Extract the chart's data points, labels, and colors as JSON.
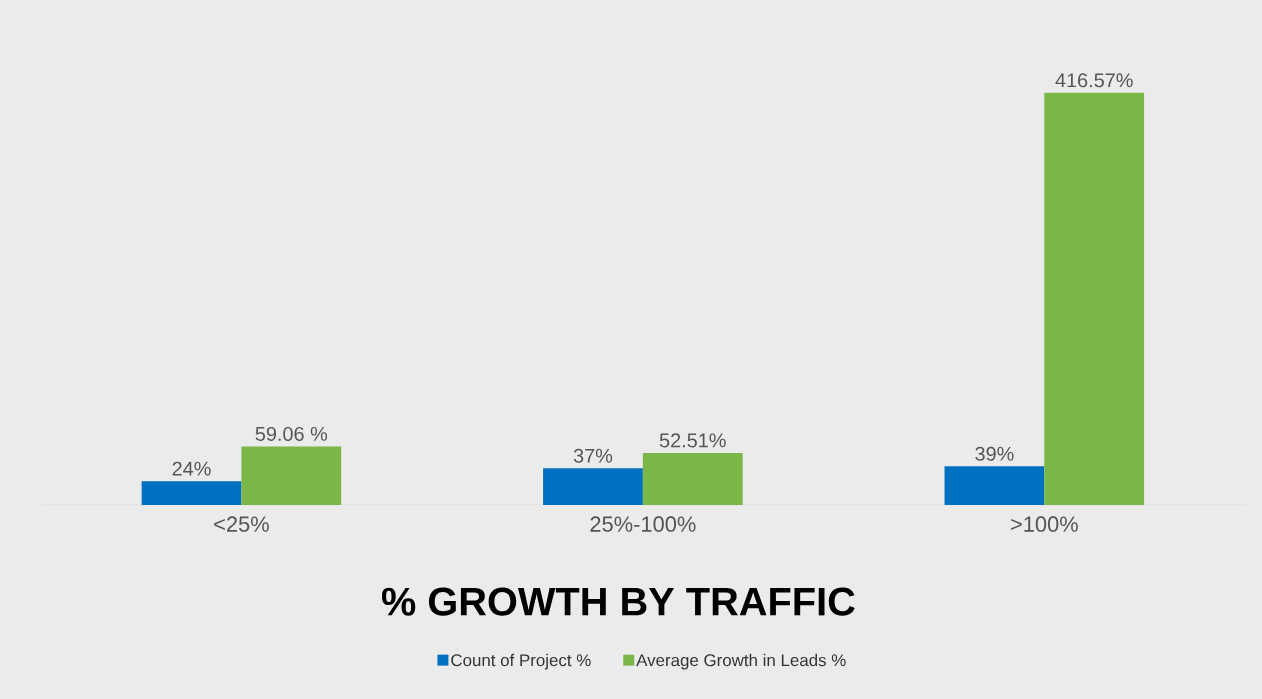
{
  "chart_data": {
    "type": "bar",
    "title": "% GROWTH BY TRAFFIC",
    "categories": [
      "<25%",
      "25%-100%",
      ">100%"
    ],
    "series": [
      {
        "name": "Count of Project %",
        "color": "#0070c0",
        "values": [
          24,
          37,
          39
        ],
        "value_labels": [
          "24%",
          "37%",
          "39%"
        ]
      },
      {
        "name": "Average Growth in Leads %",
        "color": "#7ab648",
        "values": [
          59.06,
          52.51,
          416.57
        ],
        "value_labels": [
          "59.06 %",
          "52.51%",
          "416.57%"
        ]
      }
    ],
    "legend": "bottom"
  }
}
